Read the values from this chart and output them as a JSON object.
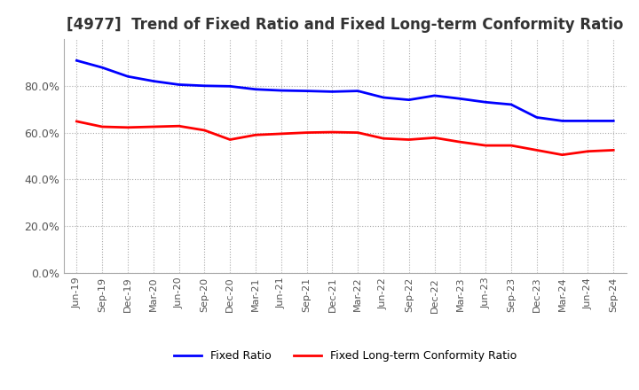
{
  "title": "[4977]  Trend of Fixed Ratio and Fixed Long-term Conformity Ratio",
  "title_fontsize": 12,
  "x_labels": [
    "Jun-19",
    "Sep-19",
    "Dec-19",
    "Mar-20",
    "Jun-20",
    "Sep-20",
    "Dec-20",
    "Mar-21",
    "Jun-21",
    "Sep-21",
    "Dec-21",
    "Mar-22",
    "Jun-22",
    "Sep-22",
    "Dec-22",
    "Mar-23",
    "Jun-23",
    "Sep-23",
    "Dec-23",
    "Mar-24",
    "Jun-24",
    "Sep-24"
  ],
  "fixed_ratio": [
    0.908,
    0.878,
    0.84,
    0.82,
    0.805,
    0.8,
    0.798,
    0.785,
    0.78,
    0.778,
    0.775,
    0.778,
    0.75,
    0.74,
    0.758,
    0.745,
    0.73,
    0.72,
    0.665,
    0.65,
    0.65,
    0.65
  ],
  "fixed_lt_ratio": [
    0.648,
    0.625,
    0.622,
    0.625,
    0.628,
    0.61,
    0.57,
    0.59,
    0.595,
    0.6,
    0.602,
    0.6,
    0.575,
    0.57,
    0.578,
    0.56,
    0.545,
    0.545,
    0.525,
    0.505,
    0.52,
    0.525
  ],
  "fixed_ratio_color": "#0000ff",
  "fixed_lt_ratio_color": "#ff0000",
  "line_width": 2.0,
  "ylim": [
    0.0,
    1.0
  ],
  "yticks": [
    0.0,
    0.2,
    0.4,
    0.6,
    0.8
  ],
  "grid_color": "#aaaaaa",
  "background_color": "#ffffff",
  "legend_fixed_ratio": "Fixed Ratio",
  "legend_fixed_lt_ratio": "Fixed Long-term Conformity Ratio"
}
